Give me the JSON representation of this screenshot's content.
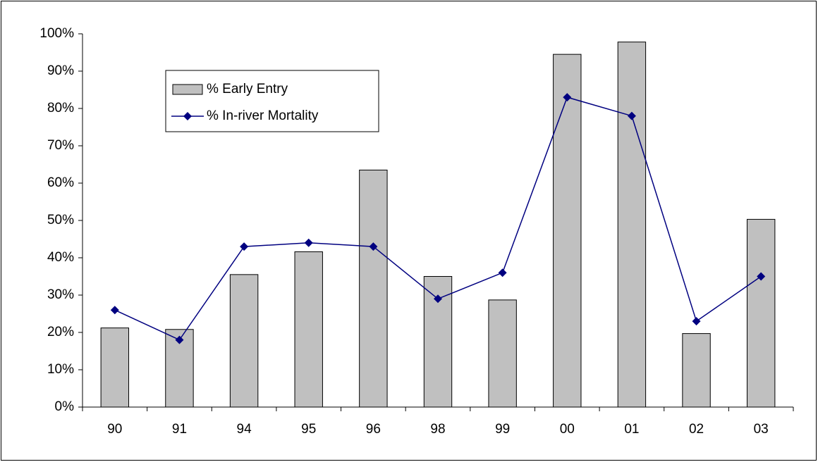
{
  "chart_data": {
    "type": "bar",
    "categories": [
      "90",
      "91",
      "94",
      "95",
      "96",
      "98",
      "99",
      "00",
      "01",
      "02",
      "03"
    ],
    "series": [
      {
        "name": "% Early Entry",
        "type": "bar",
        "color": "#c0c0c0",
        "values": [
          21.2,
          20.8,
          35.5,
          41.6,
          63.5,
          35,
          28.7,
          94.5,
          97.8,
          19.7,
          50.3
        ]
      },
      {
        "name": "% In-river Mortality",
        "type": "line",
        "color": "#000080",
        "values": [
          26,
          18,
          43,
          44,
          43,
          29,
          36,
          83,
          78,
          23,
          35
        ]
      }
    ],
    "ylim": [
      0,
      100
    ],
    "yticks": [
      {
        "value": 0,
        "label": "0%"
      },
      {
        "value": 10,
        "label": "10%"
      },
      {
        "value": 20,
        "label": "20%"
      },
      {
        "value": 30,
        "label": "30%"
      },
      {
        "value": 40,
        "label": "40%"
      },
      {
        "value": 50,
        "label": "50%"
      },
      {
        "value": 60,
        "label": "60%"
      },
      {
        "value": 70,
        "label": "70%"
      },
      {
        "value": 80,
        "label": "80%"
      },
      {
        "value": 90,
        "label": "90%"
      },
      {
        "value": 100,
        "label": "100%"
      }
    ],
    "legend": "upper left"
  }
}
